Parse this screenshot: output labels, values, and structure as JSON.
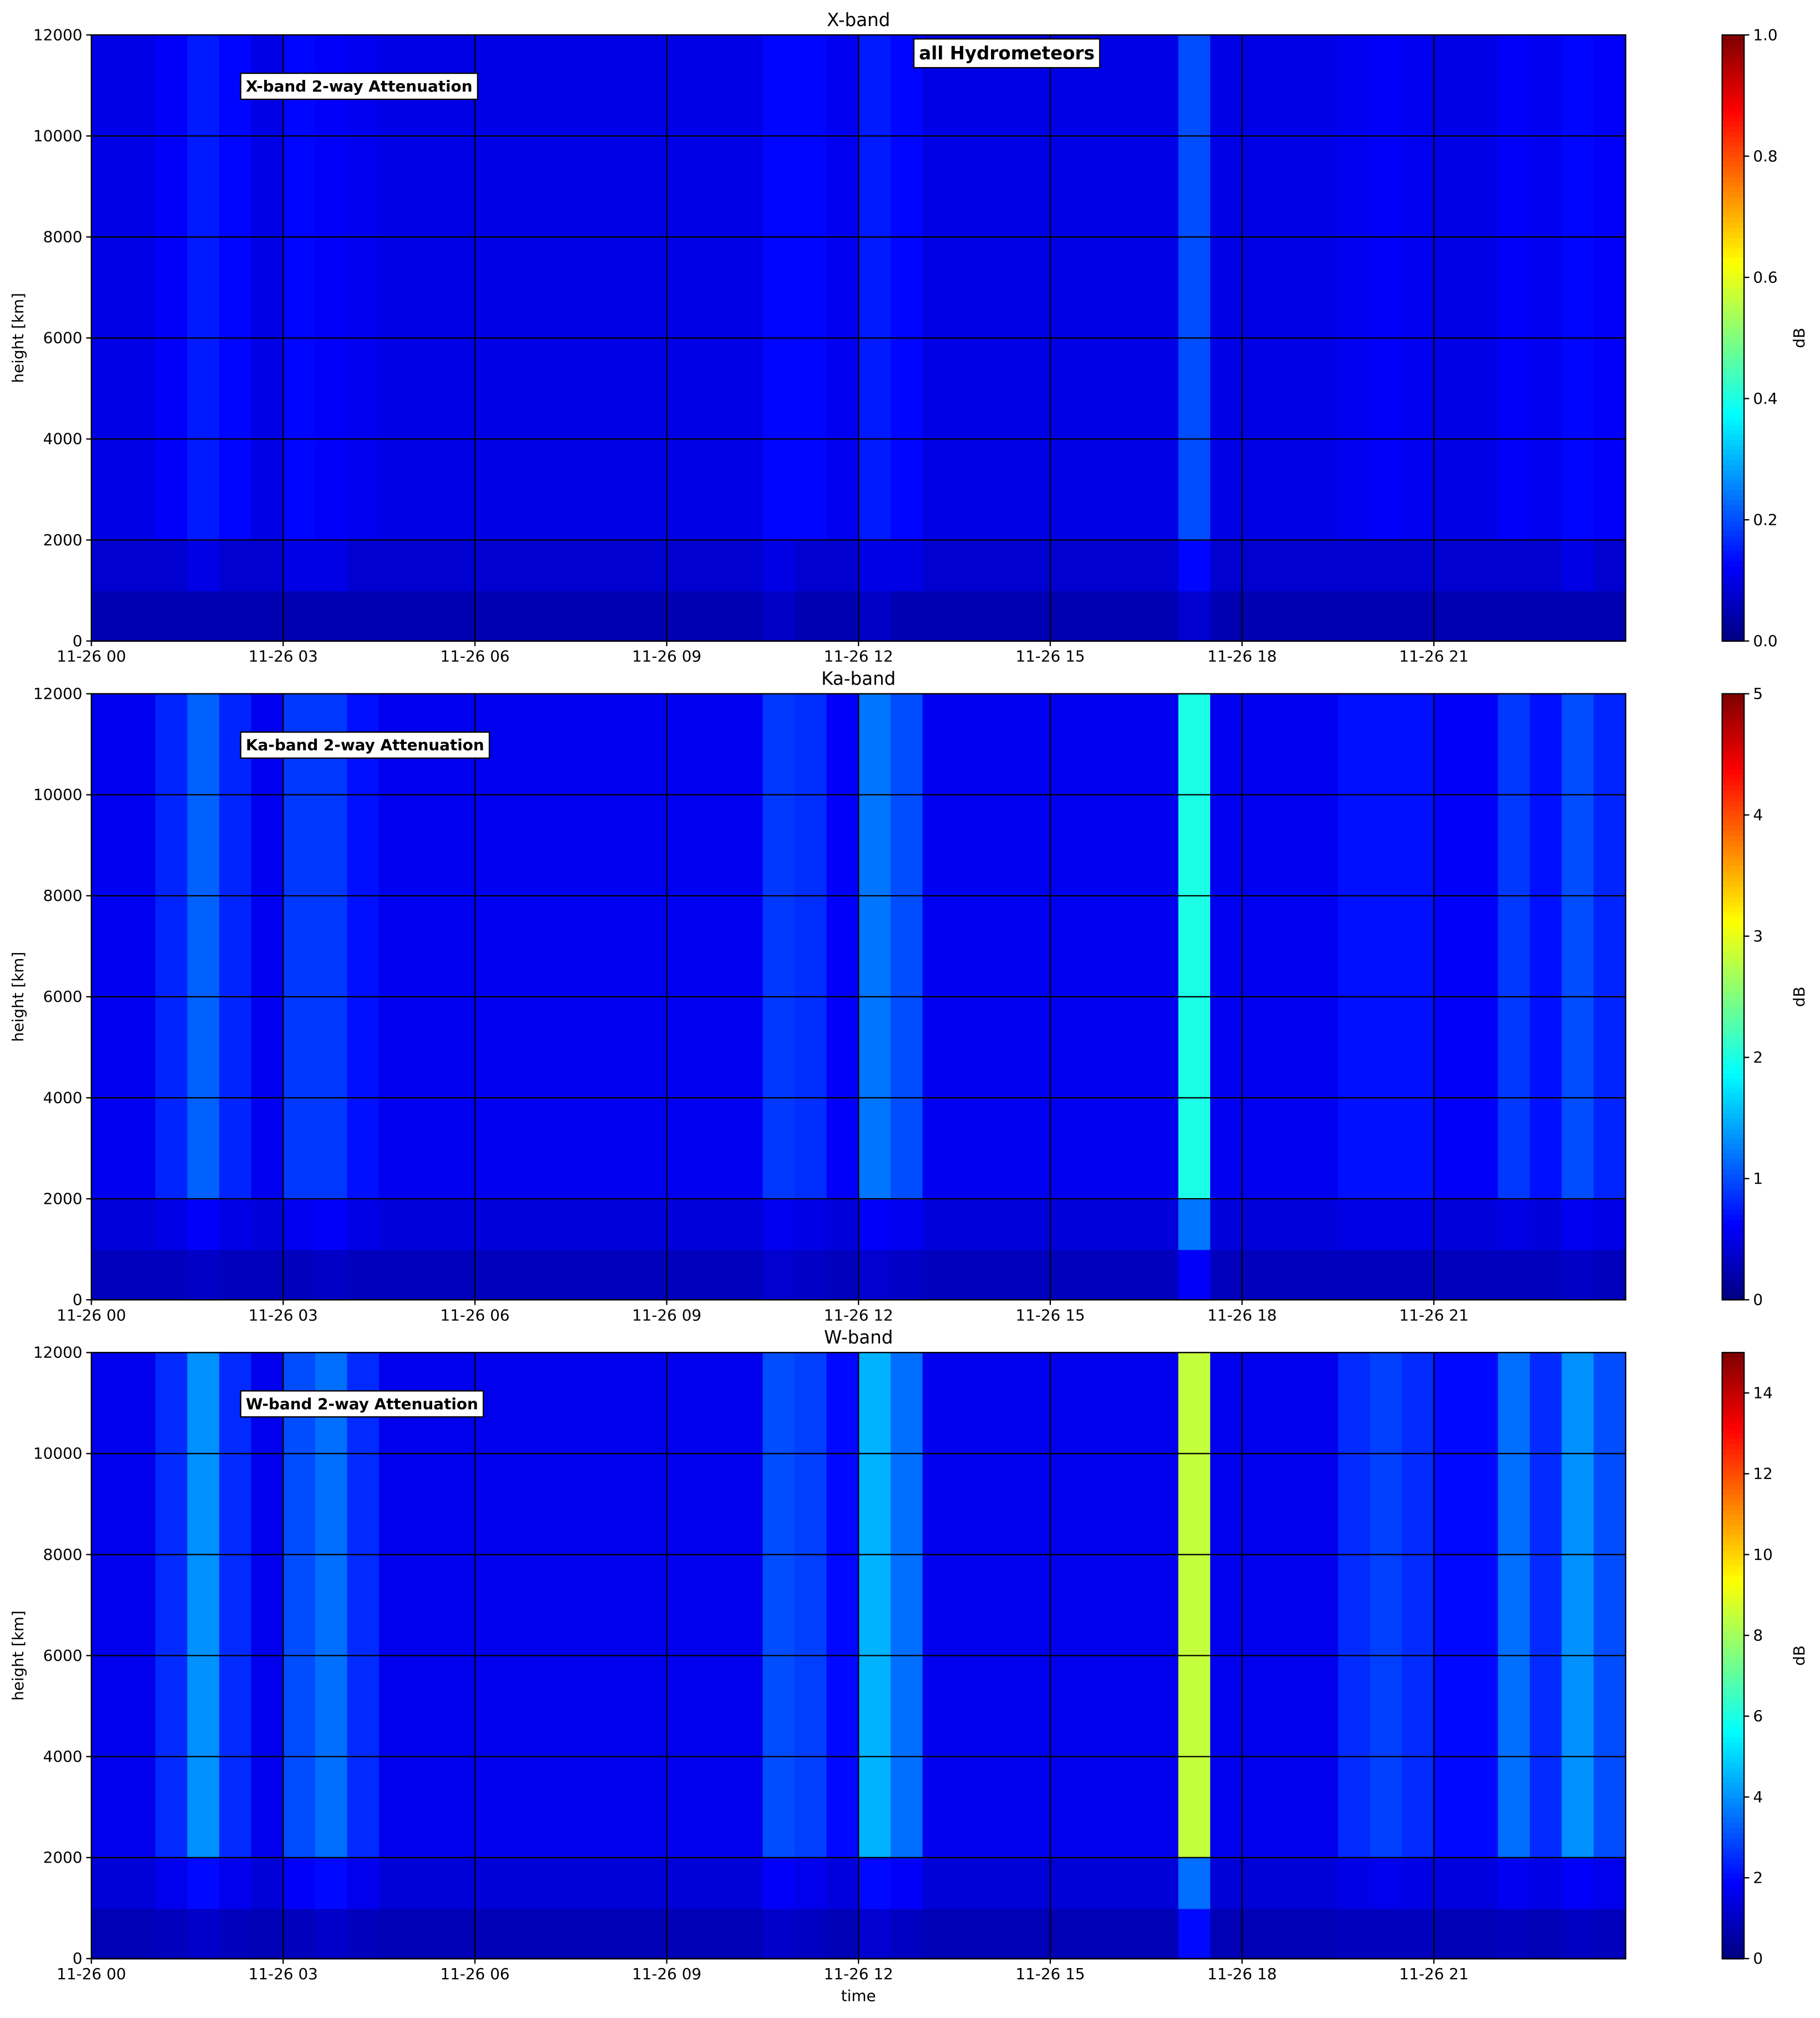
{
  "chart_data": [
    {
      "type": "heatmap",
      "title": "X-band",
      "ylabel": "height [km]",
      "colorbar_label": "dB",
      "colormap": "jet",
      "annotations": [
        "X-band 2-way Attenuation",
        "all Hydrometeors"
      ],
      "x_edges": [
        0,
        0.5,
        1,
        1.5,
        2,
        2.5,
        3,
        3.5,
        4,
        4.5,
        5,
        5.5,
        6,
        6.5,
        7,
        7.5,
        8,
        8.5,
        9,
        9.5,
        10,
        10.5,
        11,
        11.5,
        12,
        12.5,
        13,
        13.5,
        14,
        14.5,
        15,
        15.5,
        16,
        16.5,
        17,
        17.5,
        18,
        18.5,
        19,
        19.5,
        20,
        20.5,
        21,
        21.5,
        22,
        22.5,
        23,
        23.5,
        24
      ],
      "y_edges": [
        0,
        1000,
        2000,
        12000
      ],
      "z": [
        [
          0.05,
          0.05,
          0.05,
          0.05,
          0.05,
          0.05,
          0.05,
          0.05,
          0.05,
          0.05,
          0.05,
          0.05,
          0.05,
          0.05,
          0.05,
          0.05,
          0.05,
          0.05,
          0.05,
          0.05,
          0.05,
          0.07,
          0.05,
          0.05,
          0.07,
          0.05,
          0.05,
          0.05,
          0.05,
          0.05,
          0.05,
          0.05,
          0.05,
          0.05,
          0.08,
          0.05,
          0.05,
          0.05,
          0.05,
          0.05,
          0.05,
          0.05,
          0.05,
          0.05,
          0.05,
          0.05,
          0.05,
          0.05
        ],
        [
          0.08,
          0.08,
          0.08,
          0.1,
          0.08,
          0.08,
          0.1,
          0.1,
          0.08,
          0.08,
          0.08,
          0.08,
          0.08,
          0.08,
          0.08,
          0.08,
          0.08,
          0.08,
          0.08,
          0.08,
          0.08,
          0.1,
          0.08,
          0.08,
          0.1,
          0.1,
          0.08,
          0.08,
          0.08,
          0.08,
          0.08,
          0.08,
          0.08,
          0.08,
          0.13,
          0.08,
          0.08,
          0.08,
          0.08,
          0.08,
          0.08,
          0.08,
          0.08,
          0.08,
          0.08,
          0.08,
          0.1,
          0.08
        ],
        [
          0.1,
          0.1,
          0.12,
          0.15,
          0.13,
          0.1,
          0.13,
          0.12,
          0.11,
          0.1,
          0.1,
          0.1,
          0.1,
          0.1,
          0.1,
          0.1,
          0.1,
          0.1,
          0.1,
          0.1,
          0.1,
          0.13,
          0.13,
          0.11,
          0.15,
          0.13,
          0.1,
          0.1,
          0.1,
          0.1,
          0.1,
          0.1,
          0.1,
          0.1,
          0.2,
          0.1,
          0.1,
          0.1,
          0.1,
          0.11,
          0.12,
          0.11,
          0.1,
          0.1,
          0.12,
          0.11,
          0.13,
          0.12
        ]
      ],
      "xlim": [
        0,
        24
      ],
      "ylim": [
        0,
        12000
      ],
      "zlim": [
        0,
        1
      ],
      "xticks": [
        {
          "value": 0,
          "label": "11-26 00"
        },
        {
          "value": 3,
          "label": "11-26 03"
        },
        {
          "value": 6,
          "label": "11-26 06"
        },
        {
          "value": 9,
          "label": "11-26 09"
        },
        {
          "value": 12,
          "label": "11-26 12"
        },
        {
          "value": 15,
          "label": "11-26 15"
        },
        {
          "value": 18,
          "label": "11-26 18"
        },
        {
          "value": 21,
          "label": "11-26 21"
        }
      ],
      "yticks": [
        0,
        2000,
        4000,
        6000,
        8000,
        10000,
        12000
      ],
      "zticks": [
        {
          "value": 0,
          "label": "0.0"
        },
        {
          "value": 0.2,
          "label": "0.2"
        },
        {
          "value": 0.4,
          "label": "0.4"
        },
        {
          "value": 0.6,
          "label": "0.6"
        },
        {
          "value": 0.8,
          "label": "0.8"
        },
        {
          "value": 1,
          "label": "1.0"
        }
      ],
      "grid": true
    },
    {
      "type": "heatmap",
      "title": "Ka-band",
      "ylabel": "height [km]",
      "colorbar_label": "dB",
      "colormap": "jet",
      "annotations": [
        "Ka-band 2-way Attenuation"
      ],
      "x_edges": [
        0,
        0.5,
        1,
        1.5,
        2,
        2.5,
        3,
        3.5,
        4,
        4.5,
        5,
        5.5,
        6,
        6.5,
        7,
        7.5,
        8,
        8.5,
        9,
        9.5,
        10,
        10.5,
        11,
        11.5,
        12,
        12.5,
        13,
        13.5,
        14,
        14.5,
        15,
        15.5,
        16,
        16.5,
        17,
        17.5,
        18,
        18.5,
        19,
        19.5,
        20,
        20.5,
        21,
        21.5,
        22,
        22.5,
        23,
        23.5,
        24
      ],
      "y_edges": [
        0,
        1000,
        2000,
        12000
      ],
      "z": [
        [
          0.3,
          0.3,
          0.3,
          0.35,
          0.3,
          0.3,
          0.3,
          0.35,
          0.3,
          0.3,
          0.3,
          0.3,
          0.3,
          0.3,
          0.3,
          0.3,
          0.3,
          0.3,
          0.3,
          0.3,
          0.3,
          0.4,
          0.35,
          0.3,
          0.4,
          0.35,
          0.3,
          0.3,
          0.3,
          0.3,
          0.3,
          0.3,
          0.3,
          0.3,
          0.6,
          0.3,
          0.3,
          0.3,
          0.3,
          0.3,
          0.3,
          0.3,
          0.3,
          0.3,
          0.3,
          0.3,
          0.35,
          0.3
        ],
        [
          0.45,
          0.45,
          0.5,
          0.6,
          0.5,
          0.45,
          0.55,
          0.6,
          0.5,
          0.45,
          0.45,
          0.45,
          0.45,
          0.45,
          0.45,
          0.45,
          0.45,
          0.45,
          0.45,
          0.45,
          0.45,
          0.55,
          0.5,
          0.45,
          0.6,
          0.55,
          0.45,
          0.45,
          0.45,
          0.45,
          0.45,
          0.45,
          0.45,
          0.45,
          1.2,
          0.45,
          0.45,
          0.45,
          0.45,
          0.5,
          0.5,
          0.5,
          0.45,
          0.45,
          0.5,
          0.45,
          0.55,
          0.5
        ],
        [
          0.55,
          0.55,
          0.8,
          1.1,
          0.8,
          0.55,
          0.9,
          0.9,
          0.7,
          0.55,
          0.55,
          0.55,
          0.55,
          0.55,
          0.55,
          0.55,
          0.55,
          0.55,
          0.55,
          0.55,
          0.55,
          0.9,
          0.85,
          0.6,
          1.2,
          1.0,
          0.55,
          0.55,
          0.55,
          0.55,
          0.55,
          0.55,
          0.55,
          0.55,
          2.0,
          0.55,
          0.55,
          0.55,
          0.55,
          0.7,
          0.7,
          0.7,
          0.6,
          0.6,
          0.9,
          0.7,
          1.0,
          0.8
        ]
      ],
      "xlim": [
        0,
        24
      ],
      "ylim": [
        0,
        12000
      ],
      "zlim": [
        0,
        5
      ],
      "xticks": [
        {
          "value": 0,
          "label": "11-26 00"
        },
        {
          "value": 3,
          "label": "11-26 03"
        },
        {
          "value": 6,
          "label": "11-26 06"
        },
        {
          "value": 9,
          "label": "11-26 09"
        },
        {
          "value": 12,
          "label": "11-26 12"
        },
        {
          "value": 15,
          "label": "11-26 15"
        },
        {
          "value": 18,
          "label": "11-26 18"
        },
        {
          "value": 21,
          "label": "11-26 21"
        }
      ],
      "yticks": [
        0,
        2000,
        4000,
        6000,
        8000,
        10000,
        12000
      ],
      "zticks": [
        0,
        1,
        2,
        3,
        4,
        5
      ],
      "grid": true
    },
    {
      "type": "heatmap",
      "title": "W-band",
      "xlabel": "time",
      "ylabel": "height [km]",
      "colorbar_label": "dB",
      "colormap": "jet",
      "annotations": [
        "W-band 2-way Attenuation"
      ],
      "x_edges": [
        0,
        0.5,
        1,
        1.5,
        2,
        2.5,
        3,
        3.5,
        4,
        4.5,
        5,
        5.5,
        6,
        6.5,
        7,
        7.5,
        8,
        8.5,
        9,
        9.5,
        10,
        10.5,
        11,
        11.5,
        12,
        12.5,
        13,
        13.5,
        14,
        14.5,
        15,
        15.5,
        16,
        16.5,
        17,
        17.5,
        18,
        18.5,
        19,
        19.5,
        20,
        20.5,
        21,
        21.5,
        22,
        22.5,
        23,
        23.5,
        24
      ],
      "y_edges": [
        0,
        1000,
        2000,
        12000
      ],
      "z": [
        [
          0.8,
          0.8,
          0.9,
          1.1,
          0.9,
          0.8,
          0.9,
          1.1,
          0.9,
          0.8,
          0.8,
          0.8,
          0.8,
          0.8,
          0.8,
          0.8,
          0.8,
          0.8,
          0.8,
          0.8,
          0.8,
          1.1,
          1.0,
          0.8,
          1.2,
          1.0,
          0.8,
          0.8,
          0.8,
          0.8,
          0.8,
          0.8,
          0.8,
          0.8,
          2.0,
          0.8,
          0.8,
          0.8,
          0.8,
          0.9,
          0.9,
          0.9,
          0.8,
          0.8,
          0.9,
          0.8,
          1.0,
          0.9
        ],
        [
          1.3,
          1.3,
          1.6,
          2.0,
          1.6,
          1.3,
          1.8,
          2.0,
          1.6,
          1.3,
          1.3,
          1.3,
          1.3,
          1.3,
          1.3,
          1.3,
          1.3,
          1.3,
          1.3,
          1.3,
          1.3,
          1.8,
          1.6,
          1.4,
          2.0,
          1.8,
          1.3,
          1.3,
          1.3,
          1.3,
          1.3,
          1.3,
          1.3,
          1.3,
          3.5,
          1.3,
          1.3,
          1.3,
          1.3,
          1.5,
          1.6,
          1.5,
          1.4,
          1.4,
          1.7,
          1.5,
          1.8,
          1.6
        ],
        [
          1.6,
          1.6,
          2.5,
          4.0,
          2.5,
          1.6,
          3.0,
          3.5,
          2.5,
          1.6,
          1.6,
          1.6,
          1.6,
          1.6,
          1.6,
          1.6,
          1.6,
          1.6,
          1.6,
          1.6,
          1.6,
          3.0,
          2.8,
          2.0,
          4.5,
          3.5,
          1.6,
          1.6,
          1.6,
          1.6,
          1.6,
          1.6,
          1.6,
          1.6,
          8.5,
          1.6,
          1.6,
          1.6,
          1.6,
          2.5,
          2.8,
          2.5,
          2.0,
          2.0,
          3.5,
          2.5,
          4.0,
          3.0
        ]
      ],
      "xlim": [
        0,
        24
      ],
      "ylim": [
        0,
        12000
      ],
      "zlim": [
        0,
        15
      ],
      "xticks": [
        {
          "value": 0,
          "label": "11-26 00"
        },
        {
          "value": 3,
          "label": "11-26 03"
        },
        {
          "value": 6,
          "label": "11-26 06"
        },
        {
          "value": 9,
          "label": "11-26 09"
        },
        {
          "value": 12,
          "label": "11-26 12"
        },
        {
          "value": 15,
          "label": "11-26 15"
        },
        {
          "value": 18,
          "label": "11-26 18"
        },
        {
          "value": 21,
          "label": "11-26 21"
        }
      ],
      "yticks": [
        0,
        2000,
        4000,
        6000,
        8000,
        10000,
        12000
      ],
      "zticks": [
        0,
        2,
        4,
        6,
        8,
        10,
        12,
        14
      ],
      "grid": true
    }
  ]
}
